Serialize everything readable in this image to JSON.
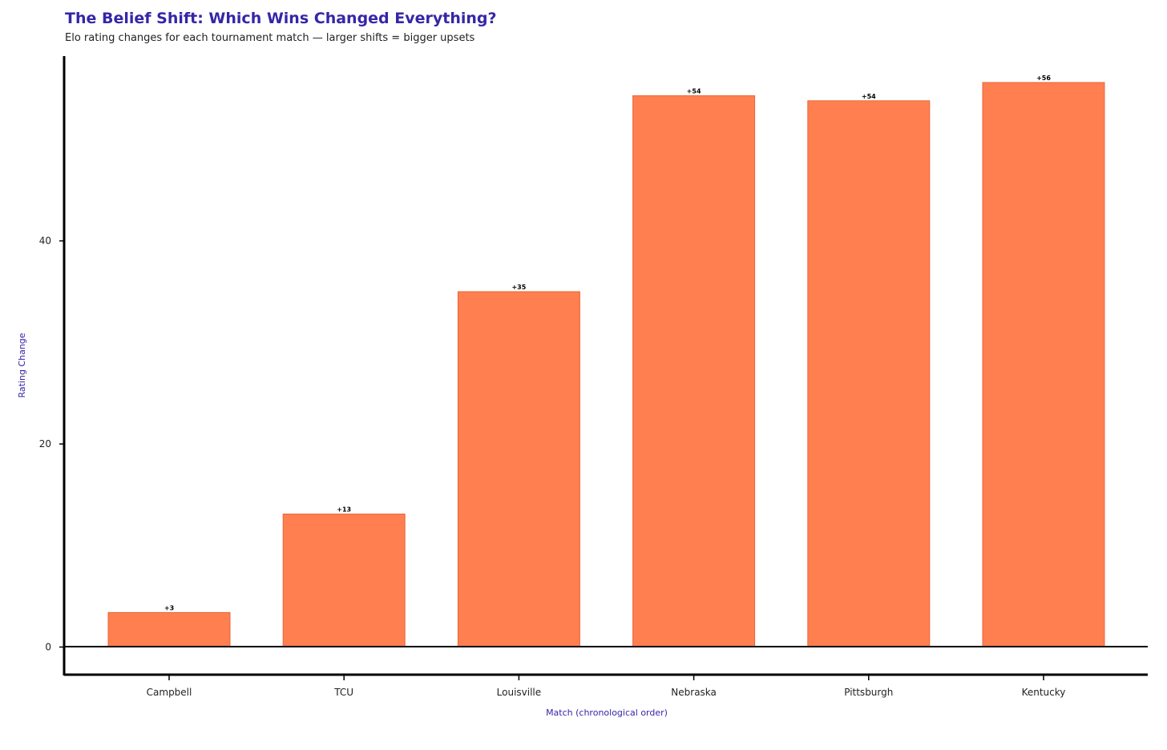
{
  "chart_data": {
    "type": "bar",
    "title": "The Belief Shift: Which Wins Changed Everything?",
    "subtitle": "Elo rating changes for each tournament match — larger shifts = bigger upsets",
    "xlabel": "Match (chronological order)",
    "ylabel": "Rating Change",
    "categories": [
      "Campbell",
      "TCU",
      "Louisville",
      "Nebraska",
      "Pittsburgh",
      "Kentucky"
    ],
    "values": [
      3.4,
      13.1,
      35.0,
      54.3,
      53.8,
      55.6
    ],
    "data_labels": [
      "+3",
      "+13",
      "+35",
      "+54",
      "+54",
      "+56"
    ],
    "yticks": [
      0,
      20,
      40
    ],
    "ylim": [
      -2.8,
      58.2
    ],
    "grid": false,
    "bar_color": "#ff7f50",
    "bar_edge_color": "#e8673a",
    "title_color": "#3526a8"
  }
}
